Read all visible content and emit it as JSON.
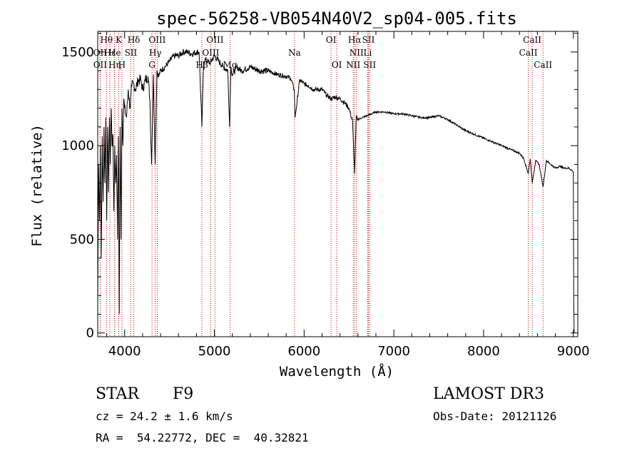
{
  "chart_data": {
    "type": "line",
    "title": "spec-56258-VB054N40V2_sp04-005.fits",
    "xlabel": "Wavelength (Å)",
    "ylabel": "Flux (relative)",
    "xlim": [
      3700,
      9050
    ],
    "ylim": [
      -20,
      1610
    ],
    "xticks": [
      4000,
      5000,
      6000,
      7000,
      8000,
      9000
    ],
    "yticks": [
      0,
      500,
      1000,
      1500
    ],
    "series": [
      {
        "name": "flux",
        "x": [
          3700,
          3710,
          3720,
          3730,
          3740,
          3750,
          3760,
          3770,
          3780,
          3790,
          3800,
          3810,
          3820,
          3830,
          3840,
          3850,
          3860,
          3870,
          3880,
          3890,
          3900,
          3910,
          3920,
          3930,
          3940,
          3950,
          3960,
          3970,
          3980,
          3990,
          4000,
          4020,
          4040,
          4060,
          4080,
          4100,
          4120,
          4150,
          4180,
          4200,
          4230,
          4260,
          4280,
          4300,
          4320,
          4340,
          4360,
          4380,
          4400,
          4450,
          4500,
          4550,
          4600,
          4650,
          4700,
          4750,
          4800,
          4830,
          4861,
          4880,
          4900,
          4950,
          5000,
          5050,
          5100,
          5150,
          5170,
          5183,
          5200,
          5250,
          5300,
          5400,
          5500,
          5600,
          5700,
          5800,
          5850,
          5890,
          5900,
          5950,
          6000,
          6050,
          6100,
          6150,
          6200,
          6250,
          6300,
          6350,
          6400,
          6450,
          6500,
          6540,
          6563,
          6580,
          6600,
          6650,
          6700,
          6750,
          6800,
          6900,
          7000,
          7100,
          7200,
          7300,
          7400,
          7500,
          7600,
          7700,
          7800,
          7900,
          8000,
          8100,
          8200,
          8300,
          8400,
          8450,
          8498,
          8520,
          8542,
          8580,
          8620,
          8662,
          8700,
          8750,
          8800,
          8850,
          8900,
          8950,
          8980,
          9000,
          9005,
          9010
        ],
        "y": [
          150,
          900,
          600,
          1000,
          400,
          1050,
          700,
          1100,
          800,
          1150,
          600,
          1100,
          750,
          1150,
          900,
          1200,
          1000,
          1050,
          650,
          1000,
          800,
          950,
          500,
          1050,
          100,
          1100,
          500,
          1200,
          1000,
          1250,
          1200,
          1150,
          1300,
          1200,
          1320,
          1330,
          1300,
          1350,
          1350,
          1300,
          1350,
          1370,
          1250,
          900,
          1380,
          900,
          1400,
          1370,
          1400,
          1420,
          1450,
          1480,
          1480,
          1500,
          1500,
          1490,
          1500,
          1500,
          1100,
          1450,
          1460,
          1440,
          1480,
          1450,
          1420,
          1400,
          1100,
          1420,
          1380,
          1420,
          1400,
          1420,
          1400,
          1400,
          1380,
          1370,
          1360,
          1300,
          1150,
          1350,
          1330,
          1320,
          1300,
          1300,
          1300,
          1270,
          1250,
          1260,
          1250,
          1230,
          1200,
          1130,
          850,
          1150,
          1140,
          1150,
          1160,
          1170,
          1180,
          1180,
          1170,
          1170,
          1160,
          1150,
          1150,
          1160,
          1140,
          1110,
          1080,
          1060,
          1040,
          1020,
          1000,
          980,
          960,
          930,
          850,
          930,
          800,
          920,
          900,
          780,
          920,
          900,
          880,
          890,
          880,
          880,
          870,
          860,
          150,
          0
        ]
      }
    ],
    "spectral_lines": [
      {
        "label": "Hθ",
        "x": 3798,
        "row": 0
      },
      {
        "label": "OII",
        "x": 3727,
        "row": 1
      },
      {
        "label": "Hε",
        "x": 3835,
        "row": 1
      },
      {
        "label": "OII",
        "x": 3727,
        "row": 2
      },
      {
        "label": "Hη",
        "x": 3889,
        "row": 2
      },
      {
        "label": "K",
        "x": 3934,
        "row": 0
      },
      {
        "label": "He",
        "x": 3889,
        "row": 1
      },
      {
        "label": "SII",
        "x": 4069,
        "row": 1
      },
      {
        "label": "H",
        "x": 3969,
        "row": 2
      },
      {
        "label": "Hδ",
        "x": 4102,
        "row": 0
      },
      {
        "label": "OIII",
        "x": 4363,
        "row": 0
      },
      {
        "label": "Hγ",
        "x": 4341,
        "row": 1
      },
      {
        "label": "G",
        "x": 4305,
        "row": 2
      },
      {
        "label": "OIII",
        "x": 5007,
        "row": 0
      },
      {
        "label": "OIII",
        "x": 4959,
        "row": 1
      },
      {
        "label": "Hβ",
        "x": 4861,
        "row": 2
      },
      {
        "label": "Mg",
        "x": 5175,
        "row": 2
      },
      {
        "label": "Na",
        "x": 5893,
        "row": 1
      },
      {
        "label": "OI",
        "x": 6300,
        "row": 0
      },
      {
        "label": "OI",
        "x": 6364,
        "row": 2
      },
      {
        "label": "Hα",
        "x": 6563,
        "row": 0
      },
      {
        "label": "SII",
        "x": 6717,
        "row": 0
      },
      {
        "label": "NII",
        "x": 6584,
        "row": 1
      },
      {
        "label": "Li",
        "x": 6708,
        "row": 1
      },
      {
        "label": "NII",
        "x": 6548,
        "row": 2
      },
      {
        "label": "SII",
        "x": 6731,
        "row": 2
      },
      {
        "label": "CaII",
        "x": 8542,
        "row": 0
      },
      {
        "label": "CaII",
        "x": 8498,
        "row": 1
      },
      {
        "label": "CaII",
        "x": 8662,
        "row": 2
      }
    ]
  },
  "info": {
    "class": "STAR",
    "subclass": "F9",
    "survey": "LAMOST DR3",
    "cz": "cz = 24.2 ± 1.6 km/s",
    "obs_date": "Obs-Date: 20121126",
    "radec": "RA =  54.22772, DEC =  40.32821"
  }
}
